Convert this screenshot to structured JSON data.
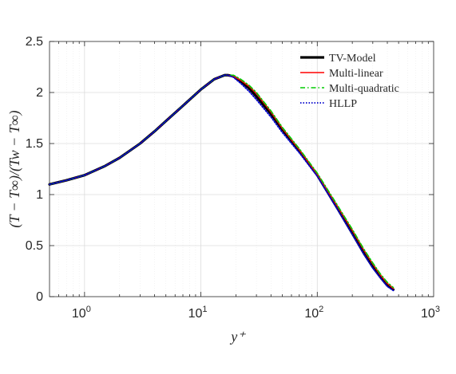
{
  "chart_data": {
    "type": "line",
    "xlabel": "y⁺",
    "ylabel": "(T − T∞)/(Tw − T∞)",
    "xscale": "log",
    "xlim": [
      0.5,
      1000
    ],
    "ylim": [
      0,
      2.5
    ],
    "grid": true,
    "legend_position": "top-right",
    "x_ticks": [
      {
        "base": "10",
        "exp": "0",
        "value": 1
      },
      {
        "base": "10",
        "exp": "1",
        "value": 10
      },
      {
        "base": "10",
        "exp": "2",
        "value": 100
      },
      {
        "base": "10",
        "exp": "3",
        "value": 1000
      }
    ],
    "y_ticks": [
      "0",
      "0.5",
      "1",
      "1.5",
      "2",
      "2.5"
    ],
    "series": [
      {
        "name": "TV-Model",
        "color": "#000000",
        "style": "solid",
        "x": [
          0.5,
          0.7,
          1,
          1.5,
          2,
          3,
          4,
          5,
          7,
          10,
          13,
          16,
          17,
          19,
          22,
          26,
          30,
          40,
          50,
          70,
          100,
          150,
          200,
          250,
          300,
          350,
          400,
          450
        ],
        "y": [
          1.1,
          1.14,
          1.19,
          1.28,
          1.36,
          1.5,
          1.62,
          1.72,
          1.87,
          2.03,
          2.13,
          2.17,
          2.17,
          2.16,
          2.11,
          2.04,
          1.96,
          1.79,
          1.64,
          1.43,
          1.19,
          0.86,
          0.62,
          0.43,
          0.29,
          0.19,
          0.11,
          0.07
        ]
      },
      {
        "name": "Multi-linear",
        "color": "#ff0000",
        "style": "solid",
        "x": [
          0.5,
          0.7,
          1,
          1.5,
          2,
          3,
          4,
          5,
          7,
          10,
          13,
          16,
          17,
          19,
          22,
          26,
          30,
          40,
          50,
          70,
          100,
          150,
          200,
          250,
          300,
          350,
          400,
          450
        ],
        "y": [
          1.1,
          1.14,
          1.19,
          1.28,
          1.36,
          1.5,
          1.62,
          1.72,
          1.87,
          2.03,
          2.13,
          2.17,
          2.17,
          2.16,
          2.12,
          2.06,
          1.99,
          1.81,
          1.65,
          1.44,
          1.2,
          0.88,
          0.65,
          0.46,
          0.32,
          0.21,
          0.13,
          0.08
        ]
      },
      {
        "name": "Multi-quadratic",
        "color": "#00cc00",
        "style": "dashdot",
        "x": [
          0.5,
          0.7,
          1,
          1.5,
          2,
          3,
          4,
          5,
          7,
          10,
          13,
          16,
          17,
          19,
          22,
          26,
          30,
          40,
          50,
          70,
          100,
          150,
          200,
          250,
          300,
          350,
          400,
          450
        ],
        "y": [
          1.1,
          1.14,
          1.19,
          1.28,
          1.36,
          1.5,
          1.62,
          1.72,
          1.87,
          2.03,
          2.13,
          2.17,
          2.17,
          2.17,
          2.13,
          2.07,
          2.0,
          1.82,
          1.66,
          1.45,
          1.21,
          0.89,
          0.66,
          0.47,
          0.33,
          0.22,
          0.14,
          0.09
        ]
      },
      {
        "name": "HLLP",
        "color": "#0000cc",
        "style": "dotted",
        "x": [
          0.5,
          0.7,
          1,
          1.5,
          2,
          3,
          4,
          5,
          7,
          10,
          13,
          16,
          17,
          19,
          22,
          26,
          30,
          40,
          50,
          70,
          100,
          150,
          200,
          250,
          300,
          350,
          400,
          450
        ],
        "y": [
          1.1,
          1.14,
          1.19,
          1.28,
          1.36,
          1.5,
          1.62,
          1.72,
          1.87,
          2.03,
          2.13,
          2.17,
          2.17,
          2.15,
          2.09,
          2.01,
          1.93,
          1.76,
          1.61,
          1.41,
          1.18,
          0.85,
          0.61,
          0.42,
          0.28,
          0.18,
          0.1,
          0.06
        ]
      }
    ]
  }
}
